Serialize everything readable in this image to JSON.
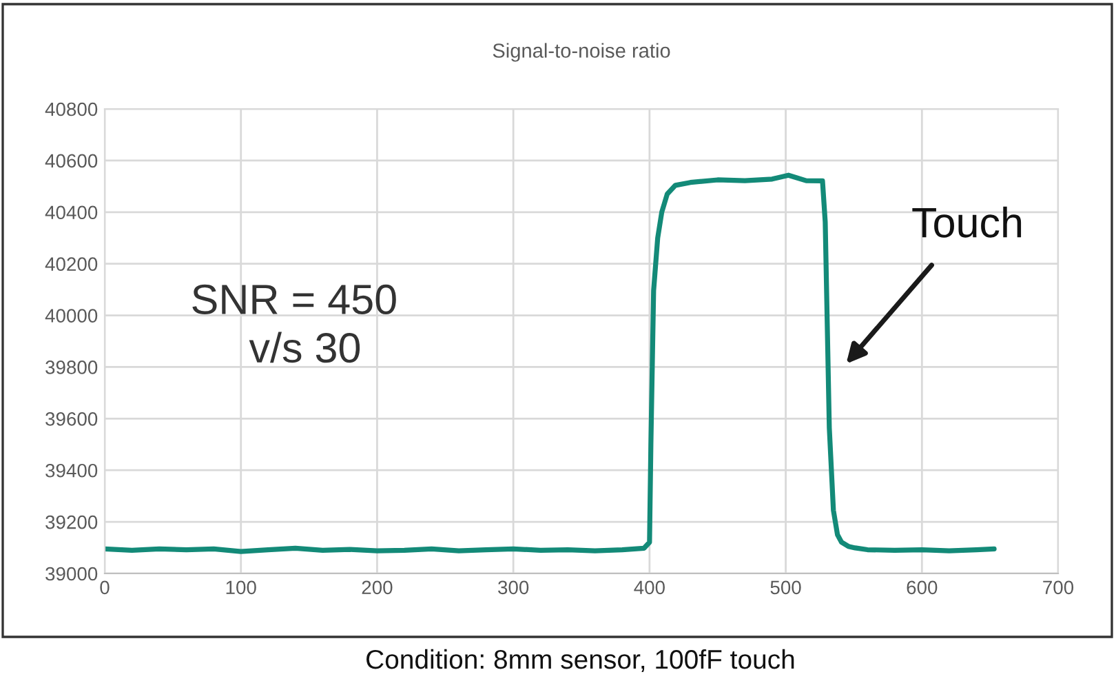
{
  "chart_data": {
    "type": "line",
    "title": "Signal-to-noise ratio",
    "series": [
      {
        "color": "#138a78",
        "x": [
          0,
          20,
          40,
          60,
          80,
          100,
          120,
          140,
          160,
          180,
          200,
          220,
          240,
          260,
          280,
          300,
          320,
          340,
          360,
          380,
          396,
          400,
          401,
          403,
          406,
          409,
          413,
          419,
          430,
          450,
          470,
          490,
          502,
          515,
          527,
          529,
          532,
          535,
          538,
          541,
          546,
          551,
          560,
          580,
          600,
          620,
          640,
          653
        ],
        "values": [
          39095,
          39090,
          39095,
          39092,
          39095,
          39085,
          39092,
          39098,
          39090,
          39093,
          39088,
          39090,
          39095,
          39088,
          39092,
          39095,
          39090,
          39092,
          39088,
          39092,
          39098,
          39121,
          39500,
          40096,
          40300,
          40400,
          40470,
          40504,
          40515,
          40525,
          40522,
          40528,
          40543,
          40522,
          40521,
          40362,
          39564,
          39245,
          39150,
          39121,
          39105,
          39099,
          39092,
          39090,
          39092,
          39088,
          39092,
          39095
        ]
      }
    ],
    "xlim": [
      0,
      700
    ],
    "xticks": [
      0,
      100,
      200,
      300,
      400,
      500,
      600,
      700
    ],
    "ylim": [
      39000,
      40800
    ],
    "yticks": [
      39000,
      39200,
      39400,
      39600,
      39800,
      40000,
      40200,
      40400,
      40600,
      40800
    ],
    "grid": true,
    "annotations": [
      "Touch",
      "SNR = 450\n     v/s 30",
      "Condition: 8mm sensor, 100fF touch"
    ]
  }
}
